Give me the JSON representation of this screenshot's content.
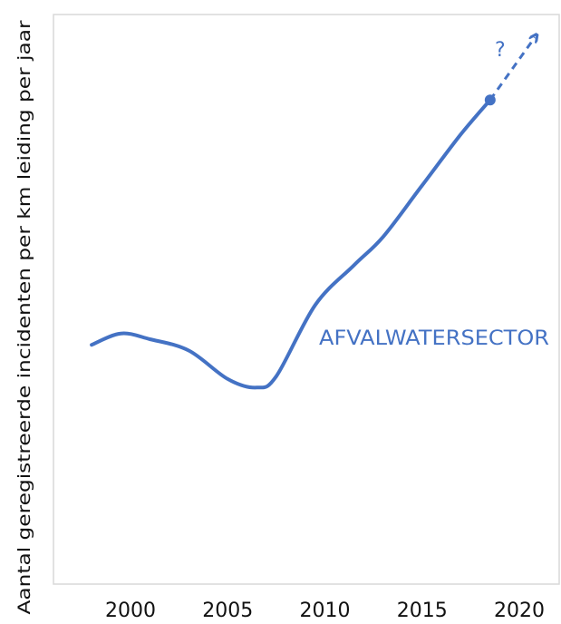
{
  "chart_data": {
    "type": "line",
    "title": "",
    "xlabel": "",
    "ylabel": "Aantal geregistreerde incidenten per km leiding per jaar",
    "xlim": [
      1997,
      2021
    ],
    "ylim": [
      0,
      10
    ],
    "x_ticks": [
      "2000",
      "2005",
      "2010",
      "2015",
      "2020"
    ],
    "y_ticks": [],
    "grid": false,
    "series": [
      {
        "name": "AFVALWATERSECTOR",
        "color": "#4472C4",
        "x": [
          1998,
          1999.5,
          2001,
          2003,
          2005,
          2006.5,
          2007.5,
          2009.5,
          2011.5,
          2013,
          2015,
          2017,
          2018.5
        ],
        "y": [
          4.2,
          4.4,
          4.3,
          4.1,
          3.6,
          3.45,
          3.65,
          4.9,
          5.6,
          6.1,
          7.0,
          7.9,
          8.5
        ]
      }
    ],
    "projection": {
      "x": [
        2018.5,
        2020.8
      ],
      "y": [
        8.5,
        9.6
      ],
      "label": "?",
      "style": "dashed-arrow"
    },
    "end_marker": {
      "x": 2018.5,
      "y": 8.5
    }
  }
}
